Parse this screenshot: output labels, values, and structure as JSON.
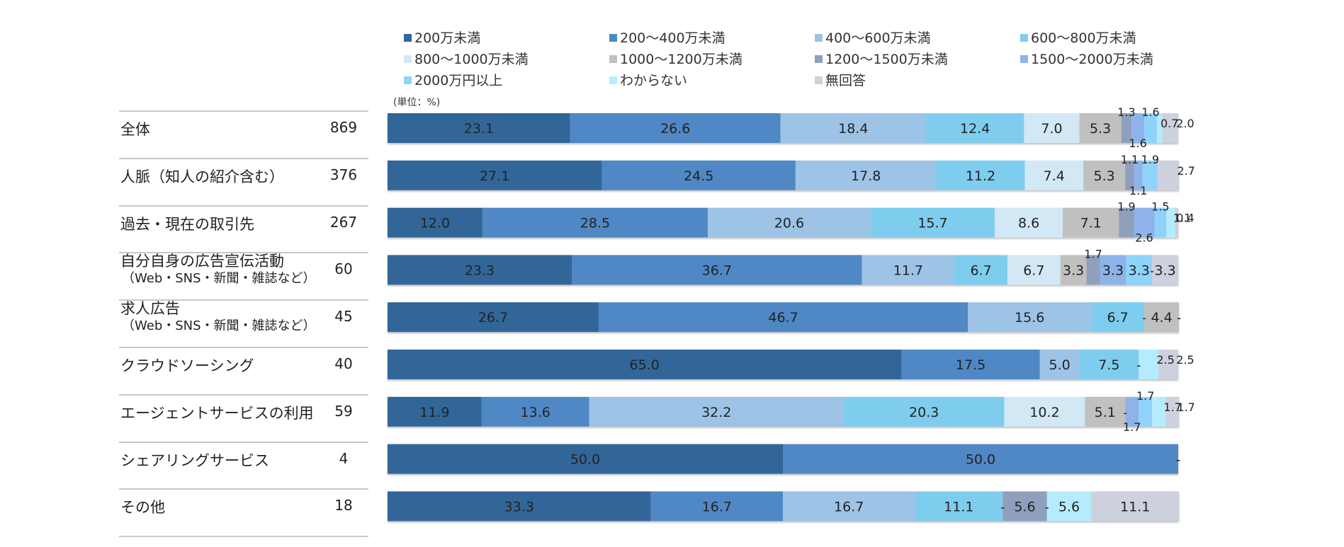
{
  "chart_data": {
    "type": "bar",
    "orientation": "horizontal",
    "stacked": "100%",
    "unit_note": "(単位：%)",
    "xlim": [
      0,
      100
    ],
    "categories": [
      {
        "label": "全体",
        "sublabel": "",
        "n": "869"
      },
      {
        "label": "人脈（知人の紹介含む）",
        "sublabel": "",
        "n": "376"
      },
      {
        "label": "過去・現在の取引先",
        "sublabel": "",
        "n": "267"
      },
      {
        "label": "自分自身の広告宣伝活動",
        "sublabel": "（Web・SNS・新聞・雑誌など）",
        "n": "60"
      },
      {
        "label": "求人広告",
        "sublabel": "（Web・SNS・新聞・雑誌など）",
        "n": "45"
      },
      {
        "label": "クラウドソーシング",
        "sublabel": "",
        "n": "40"
      },
      {
        "label": "エージェントサービスの利用",
        "sublabel": "",
        "n": "59"
      },
      {
        "label": "シェアリングサービス",
        "sublabel": "",
        "n": "4"
      },
      {
        "label": "その他",
        "sublabel": "",
        "n": "18"
      }
    ],
    "series": [
      {
        "name": "200万未満",
        "color": "#336699",
        "values": [
          23.1,
          27.1,
          12.0,
          23.3,
          26.7,
          65.0,
          11.9,
          50.0,
          33.3
        ]
      },
      {
        "name": "200～400万未満",
        "color": "#4f88c4",
        "values": [
          26.6,
          24.5,
          28.5,
          36.7,
          46.7,
          17.5,
          13.6,
          50.0,
          16.7
        ]
      },
      {
        "name": "400～600万未満",
        "color": "#9dc3e6",
        "values": [
          18.4,
          17.8,
          20.6,
          11.7,
          15.6,
          5.0,
          32.2,
          0,
          16.7
        ]
      },
      {
        "name": "600～800万未満",
        "color": "#7fcdee",
        "values": [
          12.4,
          11.2,
          15.7,
          6.7,
          6.7,
          7.5,
          20.3,
          0,
          11.1
        ]
      },
      {
        "name": "800～1000万未満",
        "color": "#d2e9f5",
        "values": [
          7.0,
          7.4,
          8.6,
          6.7,
          0,
          0,
          10.2,
          0,
          0
        ]
      },
      {
        "name": "1000～1200万未満",
        "color": "#c0c0c0",
        "values": [
          5.3,
          5.3,
          7.1,
          3.3,
          4.4,
          0,
          5.1,
          0,
          0
        ]
      },
      {
        "name": "1200～1500万未満",
        "color": "#8fa0bd",
        "values": [
          1.3,
          1.1,
          1.9,
          1.7,
          0,
          0,
          0,
          0,
          5.6
        ]
      },
      {
        "name": "1500～2000万未満",
        "color": "#8db3e8",
        "values": [
          1.6,
          1.1,
          2.6,
          3.3,
          0,
          0,
          1.7,
          0,
          0
        ]
      },
      {
        "name": "2000万円以上",
        "color": "#8fd3fb",
        "values": [
          1.6,
          1.9,
          1.5,
          3.3,
          0,
          0,
          1.7,
          0,
          0
        ]
      },
      {
        "name": "わからない",
        "color": "#b5ecfd",
        "values": [
          0.7,
          0,
          1.1,
          0,
          0,
          2.5,
          1.7,
          0,
          5.6
        ]
      },
      {
        "name": "無回答",
        "color": "#cdd1dd",
        "values": [
          2.0,
          2.7,
          0.4,
          3.3,
          0,
          2.5,
          1.7,
          0,
          11.1
        ]
      }
    ],
    "value_labels": [
      [
        "23.1",
        "26.6",
        "18.4",
        "12.4",
        "7.0",
        "5.3",
        "1.3",
        "1.6",
        "1.6",
        "0.7",
        "2.0"
      ],
      [
        "27.1",
        "24.5",
        "17.8",
        "11.2",
        "7.4",
        "5.3",
        "1.1",
        "1.1",
        "1.9",
        "",
        "2.7"
      ],
      [
        "12.0",
        "28.5",
        "20.6",
        "15.7",
        "8.6",
        "7.1",
        "1.9",
        "2.6",
        "1.5",
        "1.1",
        "0.4"
      ],
      [
        "23.3",
        "36.7",
        "11.7",
        "6.7",
        "6.7",
        "3.3",
        "1.7",
        "3.3",
        "3.3",
        "-",
        "3.3"
      ],
      [
        "26.7",
        "46.7",
        "15.6",
        "6.7",
        "-",
        "4.4",
        "-",
        "-",
        "-",
        "-",
        "-"
      ],
      [
        "65.0",
        "17.5",
        "5.0",
        "7.5",
        "-",
        "-",
        "-",
        "-",
        "-",
        "2.5",
        "2.5"
      ],
      [
        "11.9",
        "13.6",
        "32.2",
        "20.3",
        "10.2",
        "5.1",
        "-",
        "1.7",
        "1.7",
        "1.7",
        "1.7"
      ],
      [
        "50.0",
        "50.0",
        "-",
        "-",
        "-",
        "-",
        "-",
        "-",
        "-",
        "-",
        "-"
      ],
      [
        "33.3",
        "16.7",
        "16.7",
        "11.1",
        "-",
        "-",
        "5.6",
        "-",
        "-",
        "5.6",
        "11.1"
      ]
    ],
    "legend_position": "top"
  }
}
